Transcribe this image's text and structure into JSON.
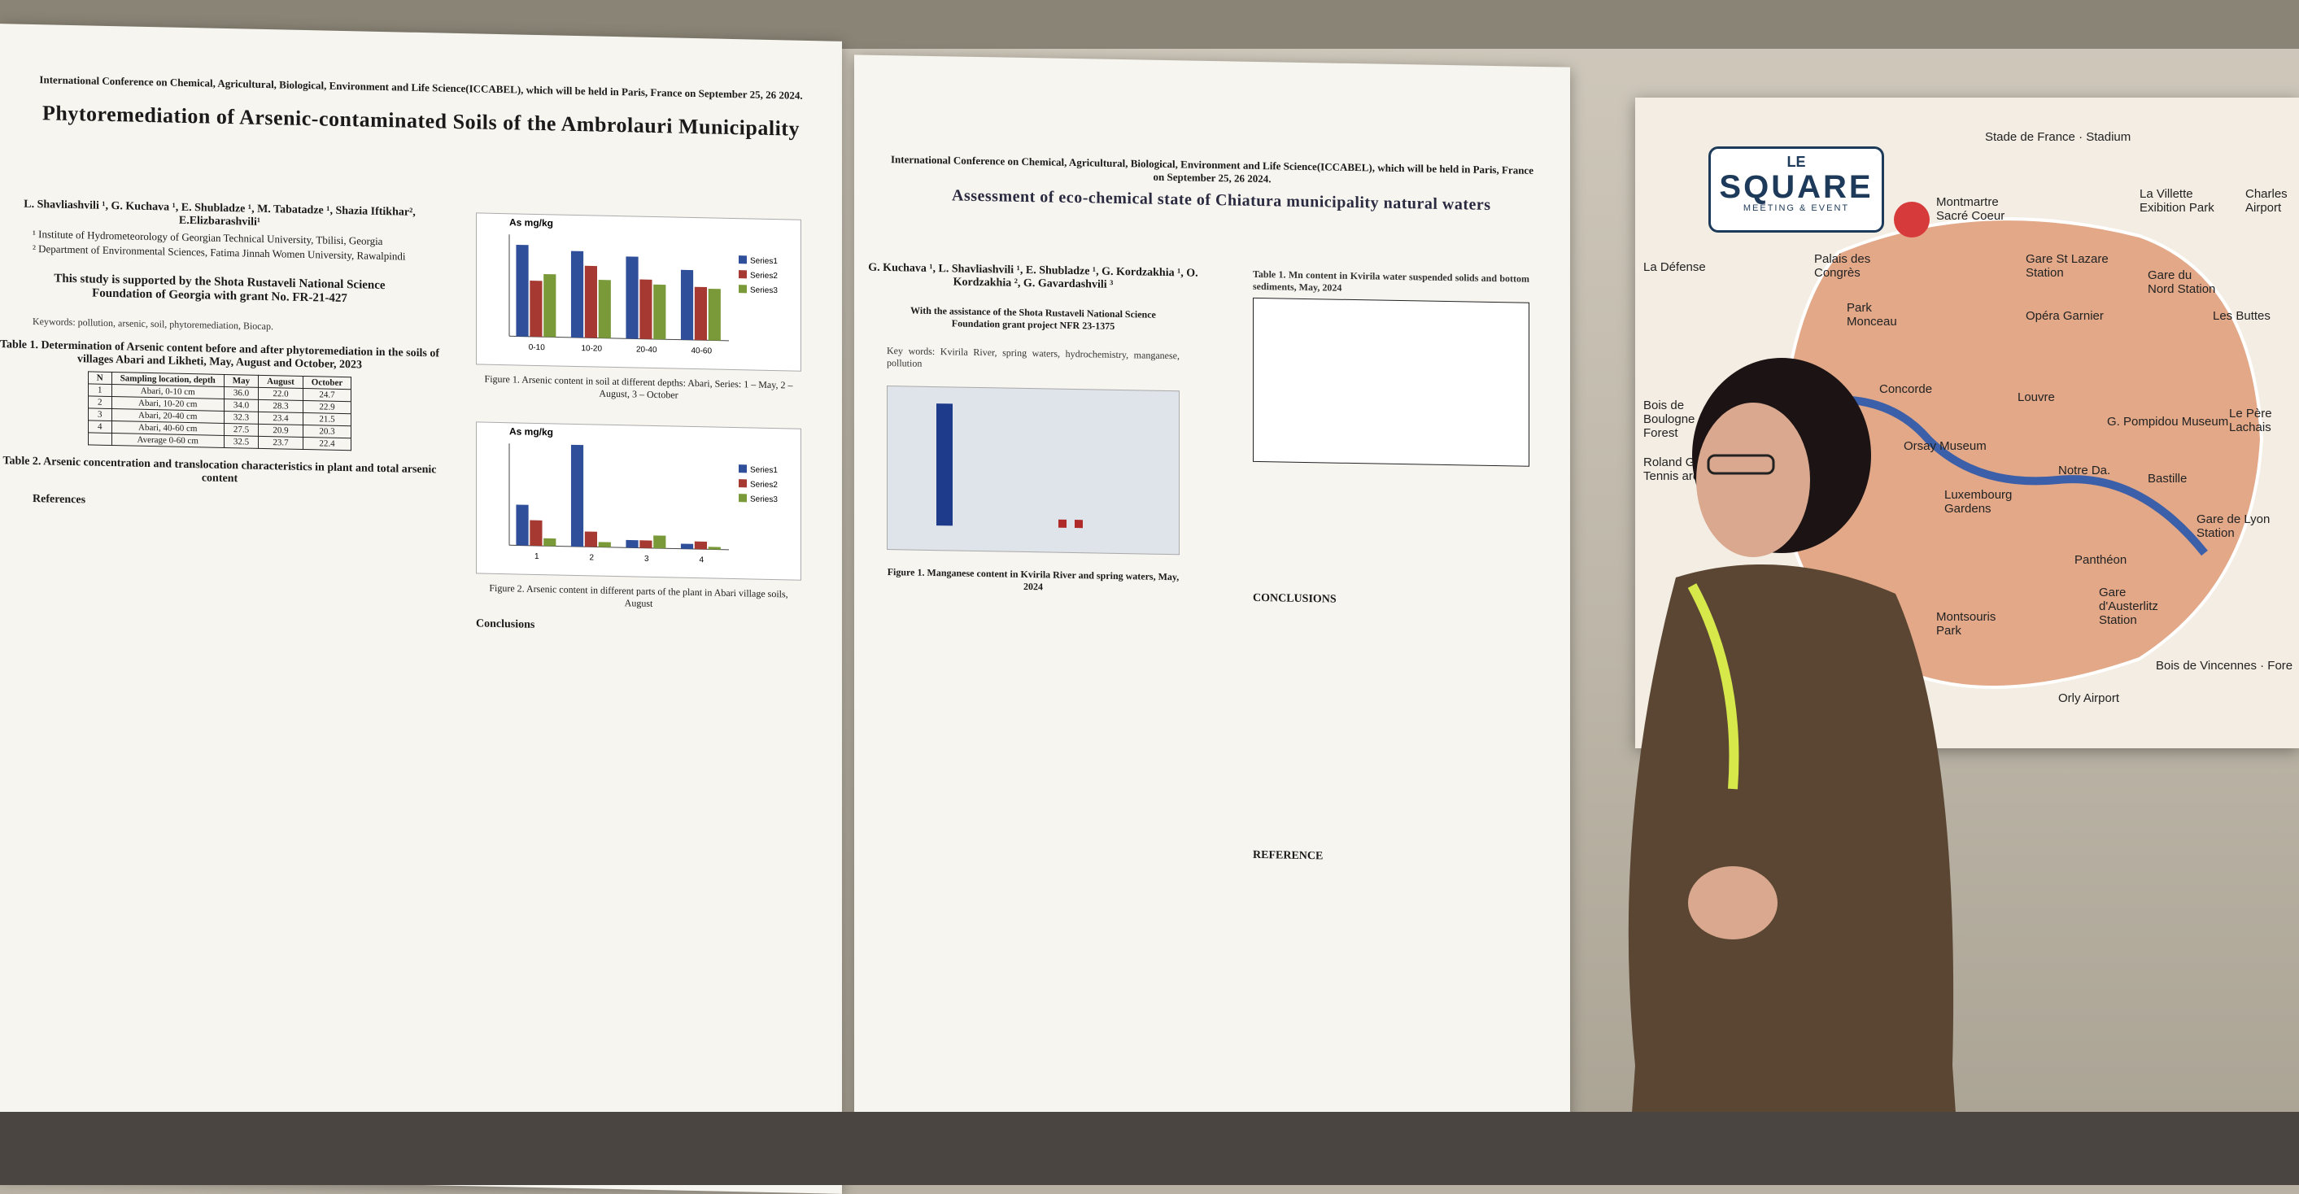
{
  "poster_left": {
    "conference": "International Conference on Chemical, Agricultural, Biological, Environment and Life Science(ICCABEL), which will be held in Paris, France on September 25, 26  2024.",
    "title": "Phytoremediation of Arsenic-contaminated Soils of the Ambrolauri Municipality",
    "authors": "L. Shavliashvili ¹, G. Kuchava ¹, E. Shubladze ¹, M. Tabatadze ¹, Shazia Iftikhar², E.Elizbarashvili¹",
    "affiliations": [
      "¹ Institute of Hydrometeorology of Georgian Technical University, Tbilisi, Georgia",
      "² Department of Environmental Sciences, Fatima Jinnah Women University, Rawalpindi"
    ],
    "support": "This study is supported by the Shota Rustaveli National Science Foundation of Georgia with grant No. FR-21-427",
    "keywords": "Keywords: pollution, arsenic, soil, phytoremediation, Biocap.",
    "table1_title": "Table 1. Determination of Arsenic content before and after phytoremediation in the soils of villages Abari and Likheti, May, August and October, 2023",
    "table1_headers": [
      "N",
      "Sampling location, depth",
      "May",
      "August",
      "October"
    ],
    "table1_rows": [
      [
        "1",
        "Abari, 0-10 cm",
        "36.0",
        "22.0",
        "24.7"
      ],
      [
        "2",
        "Abari, 10-20 cm",
        "34.0",
        "28.3",
        "22.9"
      ],
      [
        "3",
        "Abari, 20-40 cm",
        "32.3",
        "23.4",
        "21.5"
      ],
      [
        "4",
        "Abari, 40-60 cm",
        "27.5",
        "20.9",
        "20.3"
      ],
      [
        "",
        "Average 0-60 cm",
        "32.5",
        "23.7",
        "22.4"
      ]
    ],
    "table2_title": "Table 2. Arsenic concentration and translocation characteristics in plant and total arsenic content",
    "fig1_caption": "Figure 1. Arsenic content in soil at different depths: Abari, Series: 1 – May, 2 – August, 3 – October",
    "fig2_caption": "Figure 2. Arsenic content in different parts of the plant in Abari village soils, August",
    "conclusions_heading": "Conclusions",
    "references_heading": "References"
  },
  "poster_right": {
    "conference": "International Conference on Chemical, Agricultural, Biological, Environment and Life Science(ICCABEL), which will be held in Paris, France on September 25, 26  2024.",
    "title": "Assessment of eco-chemical state of Chiatura municipality natural waters",
    "authors": "G. Kuchava ¹, L. Shavliashvili ¹, E. Shubladze ¹, G. Kordzakhia ¹, O. Kordzakhia ², G. Gavardashvili ³",
    "support": "With the assistance of the Shota Rustaveli National Science Foundation grant project NFR 23-1375",
    "keywords": "Key words: Kvirila River, spring waters, hydrochemistry, manganese, pollution",
    "fig1_caption": "Figure 1. Manganese content in Kvirila River and spring waters, May, 2024",
    "table1_title": "Table 1. Mn content in Kvirila water suspended solids and bottom sediments,     May, 2024",
    "conclusions_heading": "CONCLUSIONS",
    "references_heading": "REFERENCE"
  },
  "chart_data": [
    {
      "type": "bar",
      "ylabel": "As mg/kg",
      "categories": [
        "0-10",
        "10-20",
        "20-40",
        "40-60"
      ],
      "series": [
        {
          "name": "Series1",
          "values": [
            36.0,
            34.0,
            32.3,
            27.5
          ]
        },
        {
          "name": "Series2",
          "values": [
            22.0,
            28.3,
            23.4,
            20.9
          ]
        },
        {
          "name": "Series3",
          "values": [
            24.7,
            22.9,
            21.5,
            20.3
          ]
        }
      ],
      "ylim": [
        0,
        40
      ],
      "colors": [
        "#2f4f9a",
        "#a63a32",
        "#7a9a3a"
      ]
    },
    {
      "type": "bar",
      "ylabel": "As mg/kg",
      "categories": [
        "1",
        "2",
        "3",
        "4"
      ],
      "series": [
        {
          "name": "Series1",
          "values": [
            1.6,
            4.0,
            0.3,
            0.2
          ]
        },
        {
          "name": "Series2",
          "values": [
            1.0,
            0.6,
            0.3,
            0.3
          ]
        },
        {
          "name": "Series3",
          "values": [
            0.3,
            0.2,
            0.5,
            0.1
          ]
        }
      ],
      "ylim": [
        0,
        4
      ],
      "colors": [
        "#2f4f9a",
        "#a63a32",
        "#7a9a3a"
      ]
    }
  ],
  "map": {
    "logo_le": "LE",
    "logo_square": "SQUARE",
    "logo_sub": "MEETING & EVENT",
    "labels": [
      "Stade de France · Stadium",
      "Montmartre Sacré Coeur",
      "La Villette Exibition Park",
      "Charles Airport",
      "La Défense",
      "Palais des Congrès",
      "Park Monceau",
      "Gare St Lazare Station",
      "Gare du Nord Station",
      "Opéra Garnier",
      "Les Buttes",
      "Bois de Boulogne · Forest",
      "Concorde",
      "Louvre",
      "G. Pompidou Museum",
      "Le Père Lachais",
      "Roland Ga. · Tennis are",
      "Orsay Museum",
      "Notre Da.",
      "Bastille",
      "Luxembourg Gardens",
      "Gare de Lyon Station",
      "Panthéon",
      "Gare d'Austerlitz Station",
      "Montsouris Park",
      "Bois de Vincennes · Fore",
      "Orly Airport"
    ]
  },
  "colors": {
    "map_area": "#e2a888",
    "map_water": "#3b5fa8",
    "pin": "#d63a3a",
    "lanyard": "#d7e84a"
  }
}
